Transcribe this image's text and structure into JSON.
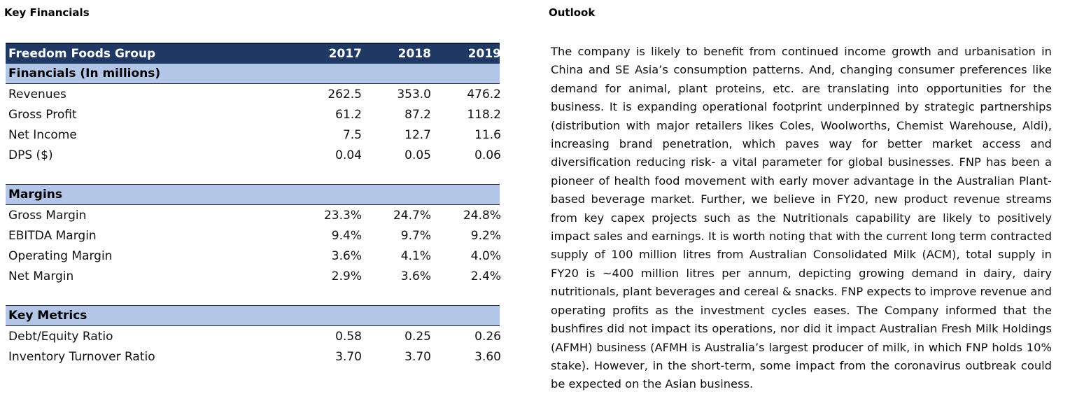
{
  "left_heading": "Key Financials",
  "right_heading": "Outlook",
  "table": {
    "company": "Freedom Foods Group",
    "years": [
      "2017",
      "2018",
      "2019"
    ],
    "sections": [
      {
        "title": "Financials (In millions)",
        "rows": [
          {
            "label": "Revenues",
            "values": [
              "262.5",
              "353.0",
              "476.2"
            ]
          },
          {
            "label": "Gross Profit",
            "values": [
              "61.2",
              "87.2",
              "118.2"
            ]
          },
          {
            "label": "Net Income",
            "values": [
              "7.5",
              "12.7",
              "11.6"
            ]
          },
          {
            "label": "DPS ($)",
            "values": [
              "0.04",
              "0.05",
              "0.06"
            ]
          }
        ]
      },
      {
        "title": "Margins",
        "rows": [
          {
            "label": "Gross Margin",
            "values": [
              "23.3%",
              "24.7%",
              "24.8%"
            ]
          },
          {
            "label": "EBITDA Margin",
            "values": [
              "9.4%",
              "9.7%",
              "9.2%"
            ]
          },
          {
            "label": "Operating Margin",
            "values": [
              "3.6%",
              "4.1%",
              "4.0%"
            ]
          },
          {
            "label": "Net Margin",
            "values": [
              "2.9%",
              "3.6%",
              "2.4%"
            ]
          }
        ]
      },
      {
        "title": "Key Metrics",
        "rows": [
          {
            "label": "Debt/Equity Ratio",
            "values": [
              "0.58",
              "0.25",
              "0.26"
            ]
          },
          {
            "label": "Inventory Turnover Ratio",
            "values": [
              "3.70",
              "3.70",
              "3.60"
            ]
          }
        ]
      }
    ]
  },
  "outlook_text": "The company is likely to benefit from continued income growth and urbanisation in China and SE Asia’s consumption patterns. And, changing consumer preferences like demand for animal, plant proteins, etc. are translating into opportunities for the business. It is expanding operational footprint underpinned by strategic partnerships (distribution with major retailers likes Coles, Woolworths, Chemist Warehouse, Aldi), increasing brand penetration, which paves way for better market access and diversification reducing risk- a vital parameter for global businesses. FNP has been a pioneer of health food movement with early mover advantage in the Australian Plant-based beverage market. Further, we believe in FY20, new product revenue streams from key capex projects such as the Nutritionals capability are likely to positively impact sales and earnings. It is worth noting that with the current long term contracted supply of 100 million litres from Australian Consolidated Milk (ACM), total supply in FY20 is ~400 million litres per annum, depicting growing demand in dairy, dairy nutritionals, plant beverages and cereal & snacks. FNP expects to improve revenue and operating profits as the investment cycles eases. The Company informed that the bushfires did not impact its operations, nor did it impact Australian Fresh Milk Holdings (AFMH) business (AFMH is Australia’s largest producer of milk, in which FNP holds 10% stake). However, in the short-term, some impact from the coronavirus outbreak could be expected on the Asian business."
}
